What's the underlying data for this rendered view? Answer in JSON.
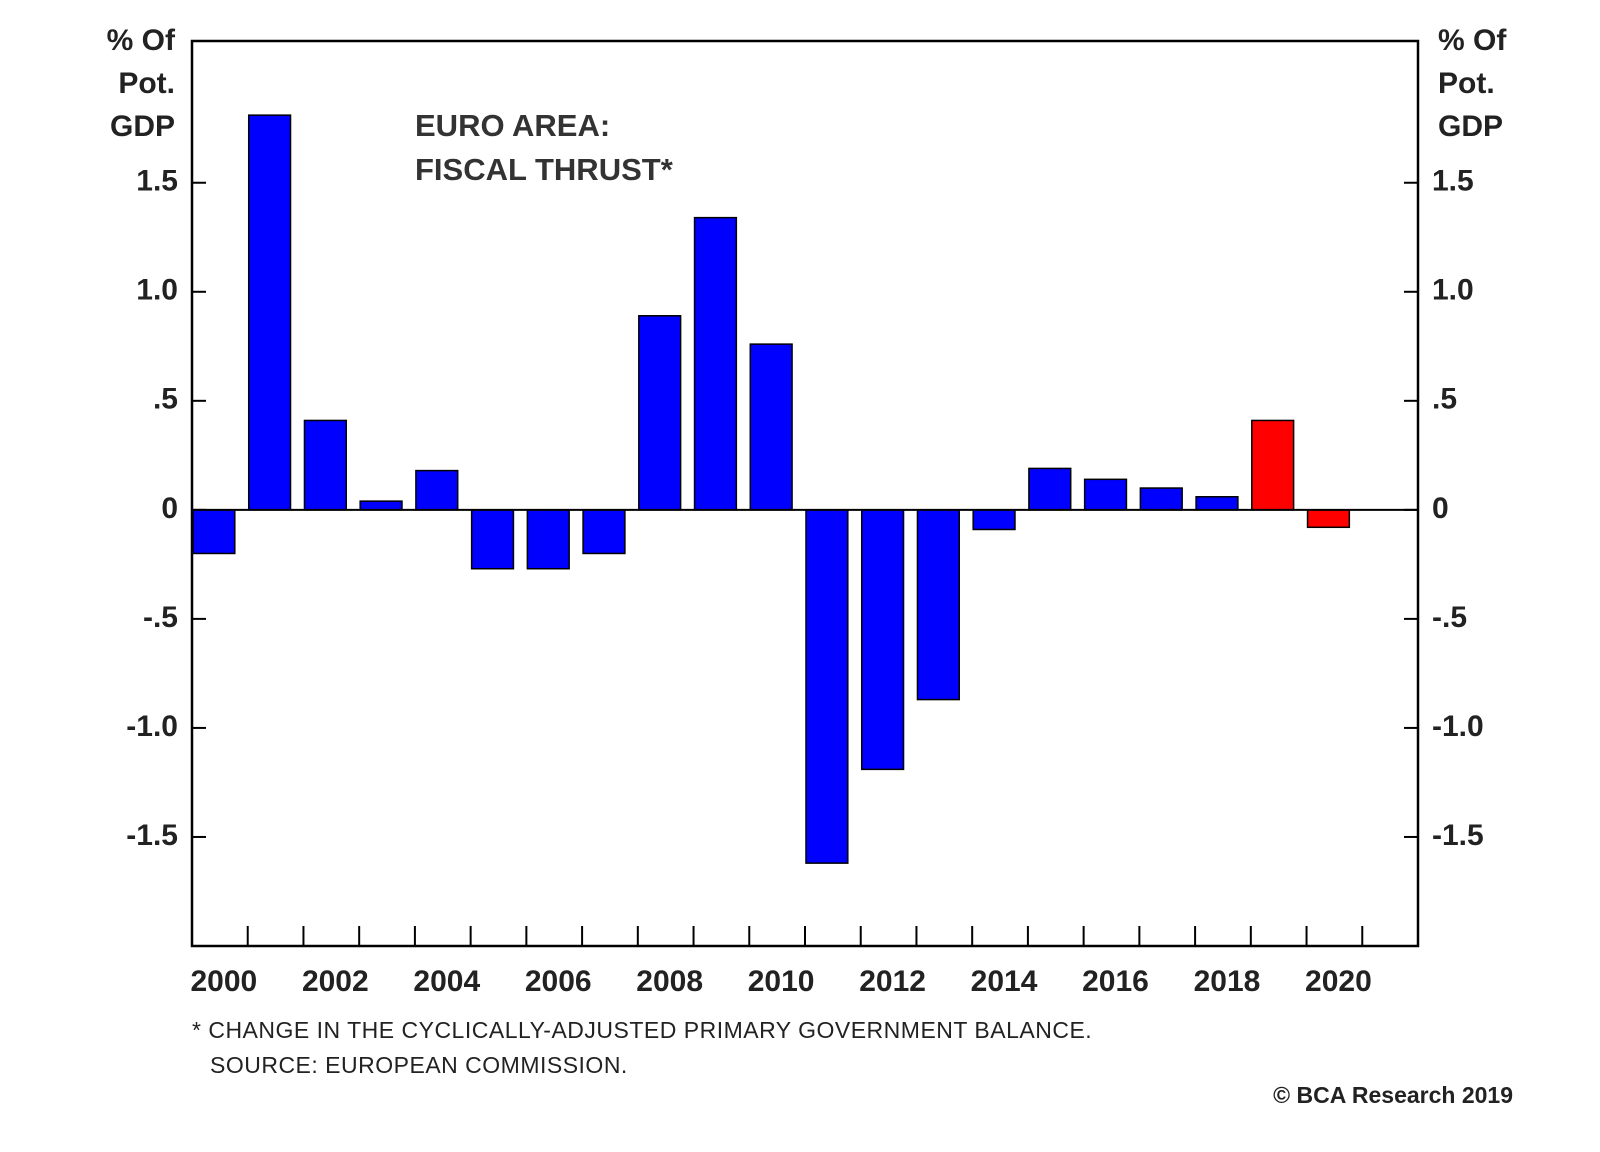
{
  "chart_data": {
    "type": "bar",
    "title": [
      "EURO AREA:",
      "FISCAL THRUST*"
    ],
    "y_label": [
      "% Of",
      "Pot.",
      "GDP"
    ],
    "y2_label": [
      "% Of",
      "Pot.",
      "GDP"
    ],
    "categories": [
      "2000",
      null,
      "2002",
      null,
      "2004",
      null,
      "2006",
      null,
      "2008",
      null,
      "2010",
      null,
      "2012",
      null,
      "2014",
      null,
      "2016",
      null,
      "2018",
      null,
      "2020"
    ],
    "values": [
      -0.2,
      1.81,
      0.41,
      0.04,
      0.18,
      -0.27,
      -0.27,
      -0.2,
      0.89,
      1.34,
      0.76,
      -1.62,
      -1.19,
      -0.87,
      -0.09,
      0.19,
      0.14,
      0.1,
      0.06,
      0.41,
      -0.08
    ],
    "colors": [
      "#0000ff",
      "#0000ff",
      "#0000ff",
      "#0000ff",
      "#0000ff",
      "#0000ff",
      "#0000ff",
      "#0000ff",
      "#0000ff",
      "#0000ff",
      "#0000ff",
      "#0000ff",
      "#0000ff",
      "#0000ff",
      "#0000ff",
      "#0000ff",
      "#0000ff",
      "#0000ff",
      "#0000ff",
      "#ff0000",
      "#ff0000"
    ],
    "ylim": [
      -2.0,
      2.15
    ],
    "yticks": [
      -1.5,
      {
        "value": -1.0,
        "label": "-1.0"
      },
      {
        "value": -0.5,
        "label": "-.5"
      },
      0,
      {
        "value": 0.5,
        "label": ".5"
      },
      {
        "value": 1.0,
        "label": "1.0"
      },
      1.5
    ],
    "y2lim": [
      -2.0,
      2.15
    ],
    "y2ticks": [
      -1.5,
      {
        "value": -1.0,
        "label": "-1.0"
      },
      {
        "value": -0.5,
        "label": "-.5"
      },
      0,
      {
        "value": 0.5,
        "label": ".5"
      },
      {
        "value": 1.0,
        "label": "1.0"
      },
      1.5
    ],
    "footnote": [
      "* CHANGE IN THE CYCLICALLY-ADJUSTED PRIMARY GOVERNMENT BALANCE.",
      "SOURCE: EUROPEAN COMMISSION."
    ],
    "credit": "© BCA Research 2019"
  }
}
